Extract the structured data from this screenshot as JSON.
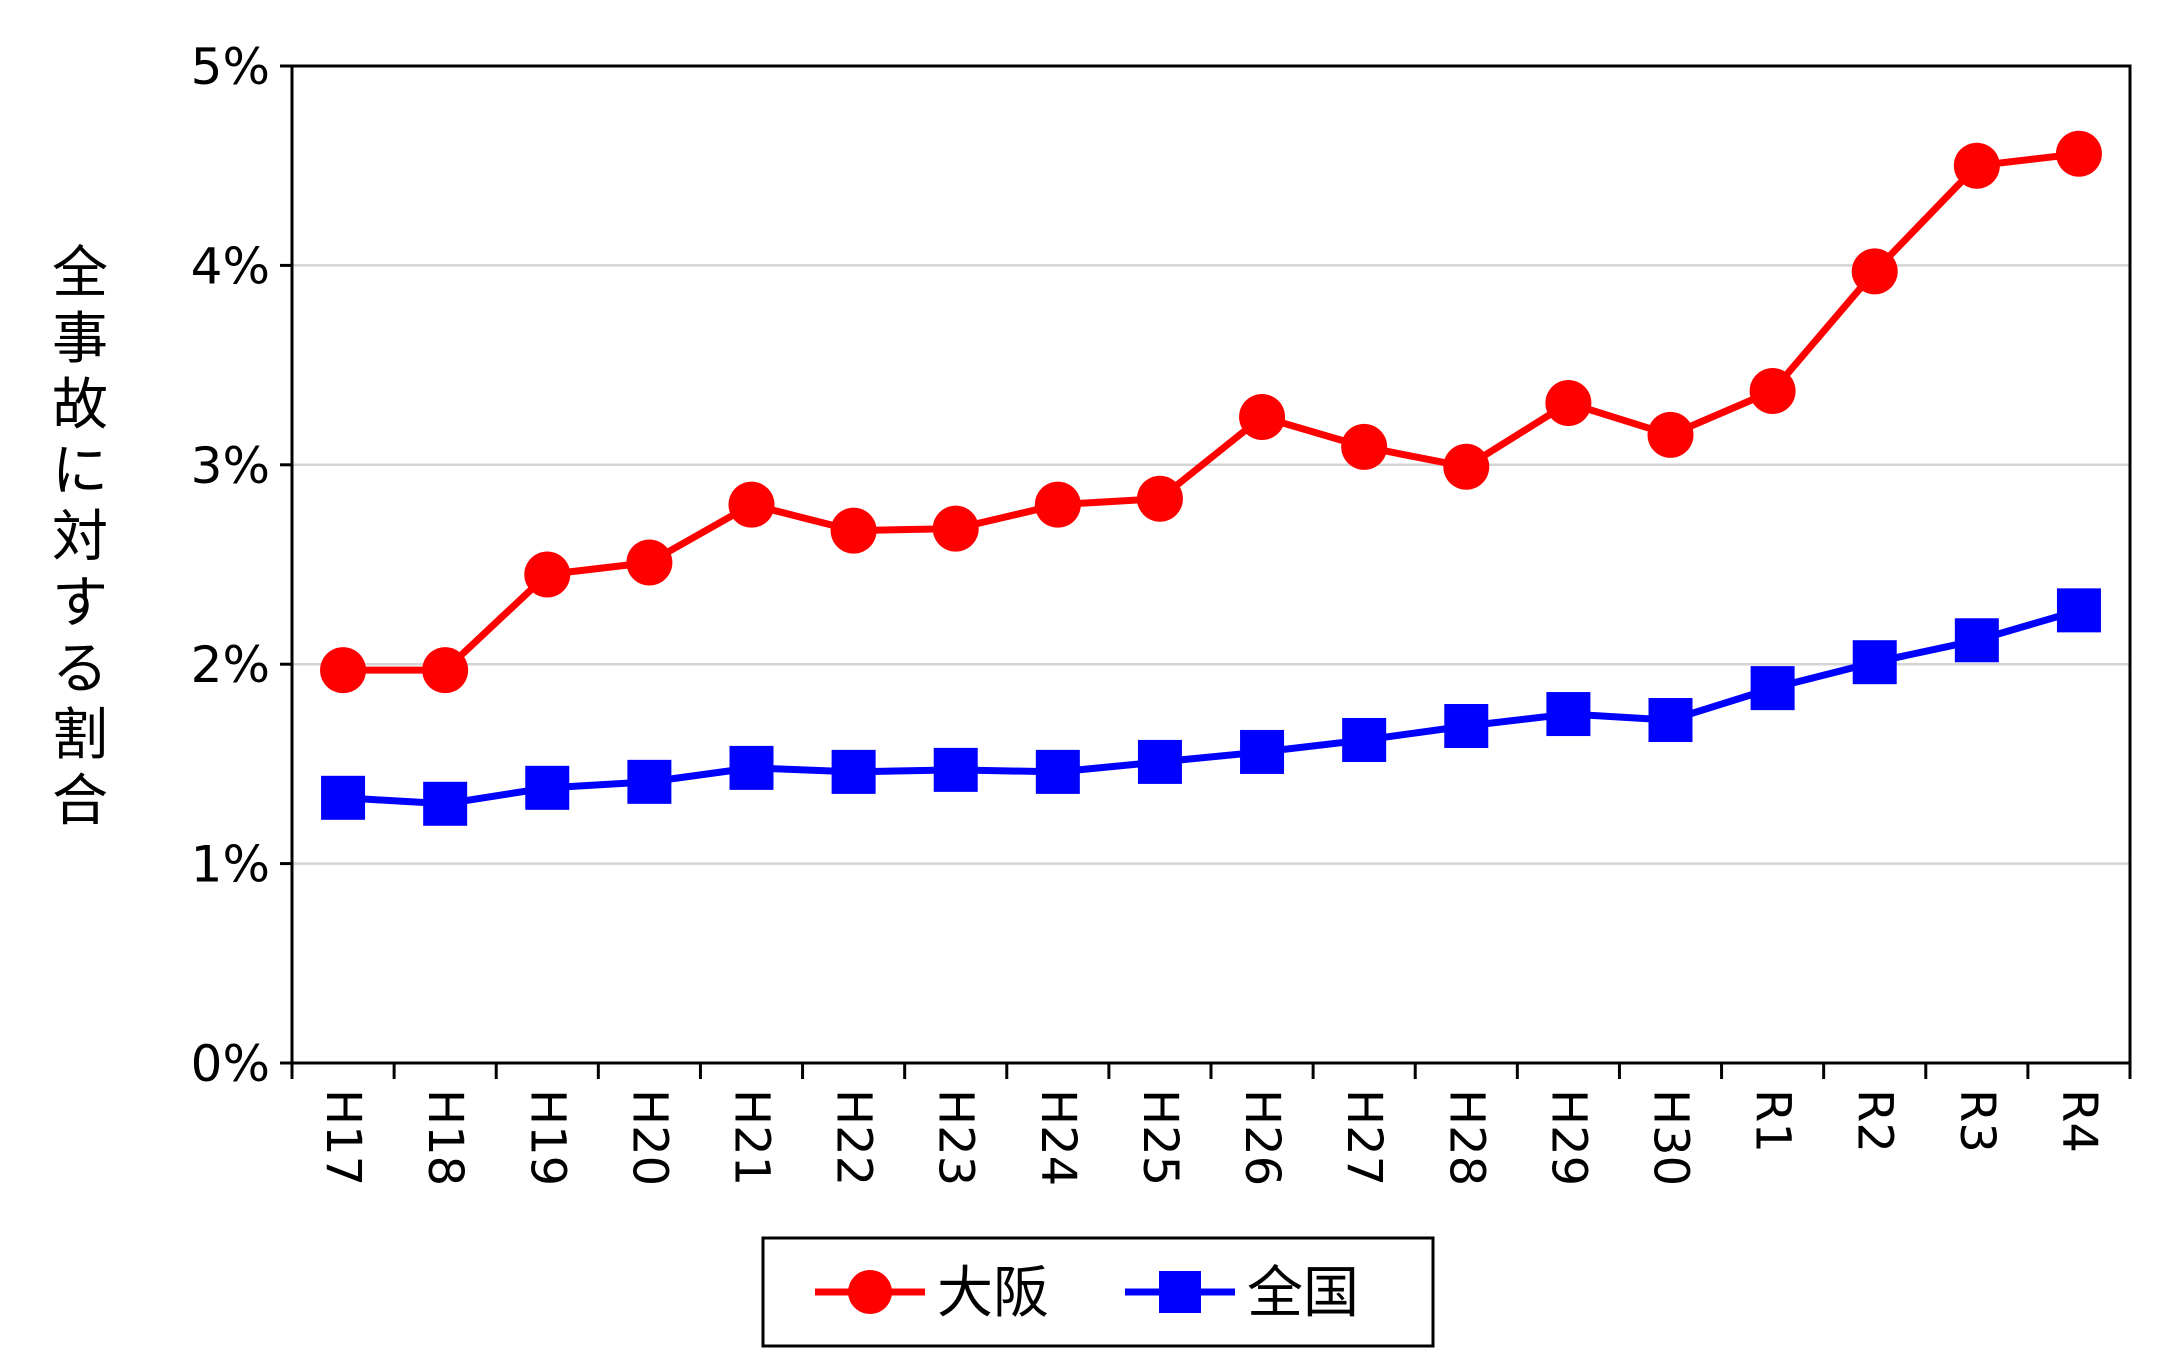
{
  "chart_data": {
    "type": "line",
    "categories": [
      "H17",
      "H18",
      "H19",
      "H20",
      "H21",
      "H22",
      "H23",
      "H24",
      "H25",
      "H26",
      "H27",
      "H28",
      "H29",
      "H30",
      "R1",
      "R2",
      "R3",
      "R4"
    ],
    "series": [
      {
        "name": "大阪",
        "color": "#ff0000",
        "marker": "circle",
        "values": [
          1.97,
          1.97,
          2.45,
          2.51,
          2.8,
          2.67,
          2.68,
          2.8,
          2.83,
          3.24,
          3.09,
          2.99,
          3.31,
          3.15,
          3.37,
          3.97,
          4.5,
          4.56
        ]
      },
      {
        "name": "全国",
        "color": "#0000ff",
        "marker": "square",
        "values": [
          1.33,
          1.3,
          1.38,
          1.41,
          1.48,
          1.46,
          1.47,
          1.46,
          1.51,
          1.56,
          1.62,
          1.69,
          1.75,
          1.72,
          1.88,
          2.01,
          2.12,
          2.27
        ]
      }
    ],
    "ylabel": "全事故に対する割合",
    "xlabel": "",
    "ylim": [
      0,
      5
    ],
    "yticks": [
      0,
      1,
      2,
      3,
      4,
      5
    ],
    "ytick_labels": [
      "0%",
      "1%",
      "2%",
      "3%",
      "4%",
      "5%"
    ],
    "grid": "horizontal",
    "legend": "bottom"
  }
}
